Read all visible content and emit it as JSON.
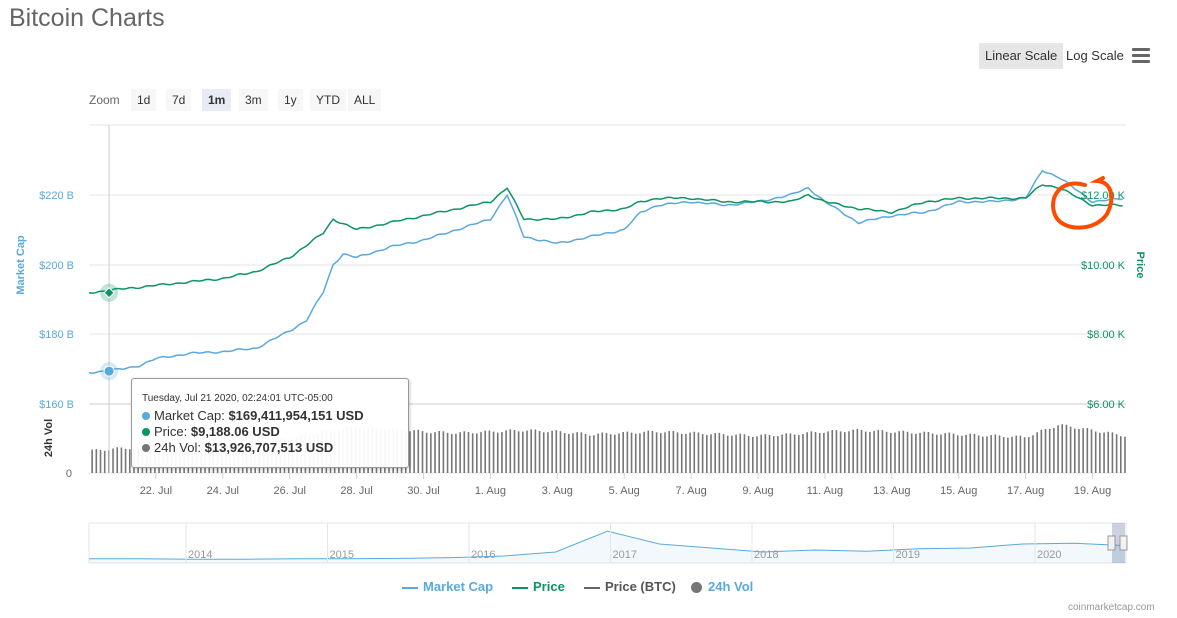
{
  "page": {
    "title": "Bitcoin Charts",
    "credit": "coinmarketcap.com"
  },
  "scale": {
    "linear_label": "Linear Scale",
    "log_label": "Log Scale",
    "active": "linear"
  },
  "zoom": {
    "label": "Zoom",
    "options": [
      "1d",
      "7d",
      "1m",
      "3m",
      "1y",
      "YTD",
      "ALL"
    ],
    "active": "1m"
  },
  "tooltip": {
    "date": "Tuesday, Jul 21 2020, 02:24:01 UTC-05:00",
    "market_cap_label": "Market Cap:",
    "market_cap_value": "$169,411,954,151 USD",
    "price_label": "Price:",
    "price_value": "$9,188.06 USD",
    "vol_label": "24h Vol:",
    "vol_value": "$13,926,707,513 USD"
  },
  "legend": [
    "Market Cap",
    "Price",
    "Price (BTC)",
    "24h Vol"
  ],
  "colors": {
    "market_cap": "#5aa9dc",
    "price": "#0d9462",
    "volume": "#767676",
    "btc": "#666666",
    "annotation": "#ff4b00"
  },
  "chart_data": {
    "type": "line",
    "x_range": [
      "2020-07-20",
      "2020-08-20"
    ],
    "x_ticks": [
      "22. Jul",
      "24. Jul",
      "26. Jul",
      "28. Jul",
      "30. Jul",
      "1. Aug",
      "3. Aug",
      "5. Aug",
      "7. Aug",
      "9. Aug",
      "11. Aug",
      "13. Aug",
      "15. Aug",
      "17. Aug",
      "19. Aug"
    ],
    "left_axis": {
      "title": "Market Cap",
      "ticks": [
        "$160 B",
        "$180 B",
        "$200 B",
        "$220 B"
      ],
      "range": [
        160,
        240
      ]
    },
    "right_axis": {
      "title": "Price",
      "ticks": [
        "$6.00 K",
        "$8.00 K",
        "$10.00 K",
        "$12.00 K"
      ],
      "range": [
        6,
        14
      ]
    },
    "volume_axis": {
      "title": "24h Vol",
      "ticks": [
        "0"
      ]
    },
    "grid": true,
    "legend_position": "bottom-center",
    "series": [
      {
        "name": "Market Cap",
        "x": [
          0,
          1,
          1.5,
          2,
          3,
          4,
          5,
          6,
          6.5,
          7,
          7.3,
          7.6,
          8,
          9,
          10,
          11,
          12,
          12.5,
          13,
          14,
          15,
          16,
          16.5,
          17,
          18,
          19,
          20,
          21,
          21.5,
          22,
          23,
          24,
          25,
          26,
          27,
          28,
          28.5,
          29,
          30,
          31
        ],
        "values": [
          169,
          170,
          171,
          173,
          174.5,
          175,
          176,
          181,
          184,
          192,
          200,
          203,
          202,
          205,
          207,
          210,
          213,
          220,
          208,
          206,
          208,
          210,
          215,
          217,
          218,
          217,
          218,
          220,
          222,
          218,
          212,
          214,
          215,
          218,
          218,
          219,
          227,
          225,
          218,
          219
        ]
      },
      {
        "name": "Price",
        "x": [
          0,
          1,
          2,
          3,
          4,
          5,
          6,
          7,
          7.3,
          8,
          9,
          10,
          11,
          12,
          12.5,
          13,
          14,
          15,
          16,
          16.5,
          17,
          18,
          19,
          20,
          21,
          21.5,
          22,
          23,
          24,
          25,
          26,
          27,
          28,
          28.5,
          29,
          30,
          31
        ],
        "values": [
          9.19,
          9.3,
          9.4,
          9.5,
          9.6,
          9.8,
          10.2,
          10.9,
          11.3,
          11.0,
          11.2,
          11.4,
          11.6,
          11.8,
          12.2,
          11.3,
          11.3,
          11.5,
          11.6,
          11.8,
          11.9,
          11.9,
          11.8,
          11.8,
          11.8,
          12.0,
          11.8,
          11.6,
          11.5,
          11.8,
          11.9,
          11.9,
          11.9,
          12.3,
          12.2,
          11.7,
          11.7
        ]
      },
      {
        "name": "24h Vol",
        "x": [
          0,
          1,
          2,
          3,
          4,
          5,
          6,
          7,
          8,
          9,
          10,
          11,
          12,
          13,
          14,
          15,
          16,
          17,
          18,
          19,
          20,
          21,
          22,
          23,
          24,
          25,
          26,
          27,
          28,
          29,
          30,
          31
        ],
        "values": [
          0.32,
          0.36,
          0.38,
          0.4,
          0.42,
          0.45,
          0.5,
          0.6,
          0.66,
          0.64,
          0.6,
          0.58,
          0.6,
          0.62,
          0.6,
          0.56,
          0.58,
          0.6,
          0.58,
          0.56,
          0.54,
          0.56,
          0.6,
          0.62,
          0.6,
          0.58,
          0.56,
          0.54,
          0.52,
          0.7,
          0.62,
          0.54
        ]
      }
    ],
    "tooltip_point": {
      "x": 0.6,
      "market_cap": 169.41,
      "price": 9.19
    },
    "navigator": {
      "labels": [
        "2014",
        "2015",
        "2016",
        "2017",
        "2018",
        "2019",
        "2020"
      ],
      "values": [
        0.03,
        0.03,
        0.02,
        0.02,
        0.03,
        0.03,
        0.04,
        0.06,
        0.1,
        0.2,
        0.72,
        0.4,
        0.3,
        0.2,
        0.25,
        0.22,
        0.28,
        0.3,
        0.4,
        0.42,
        0.36
      ]
    }
  }
}
